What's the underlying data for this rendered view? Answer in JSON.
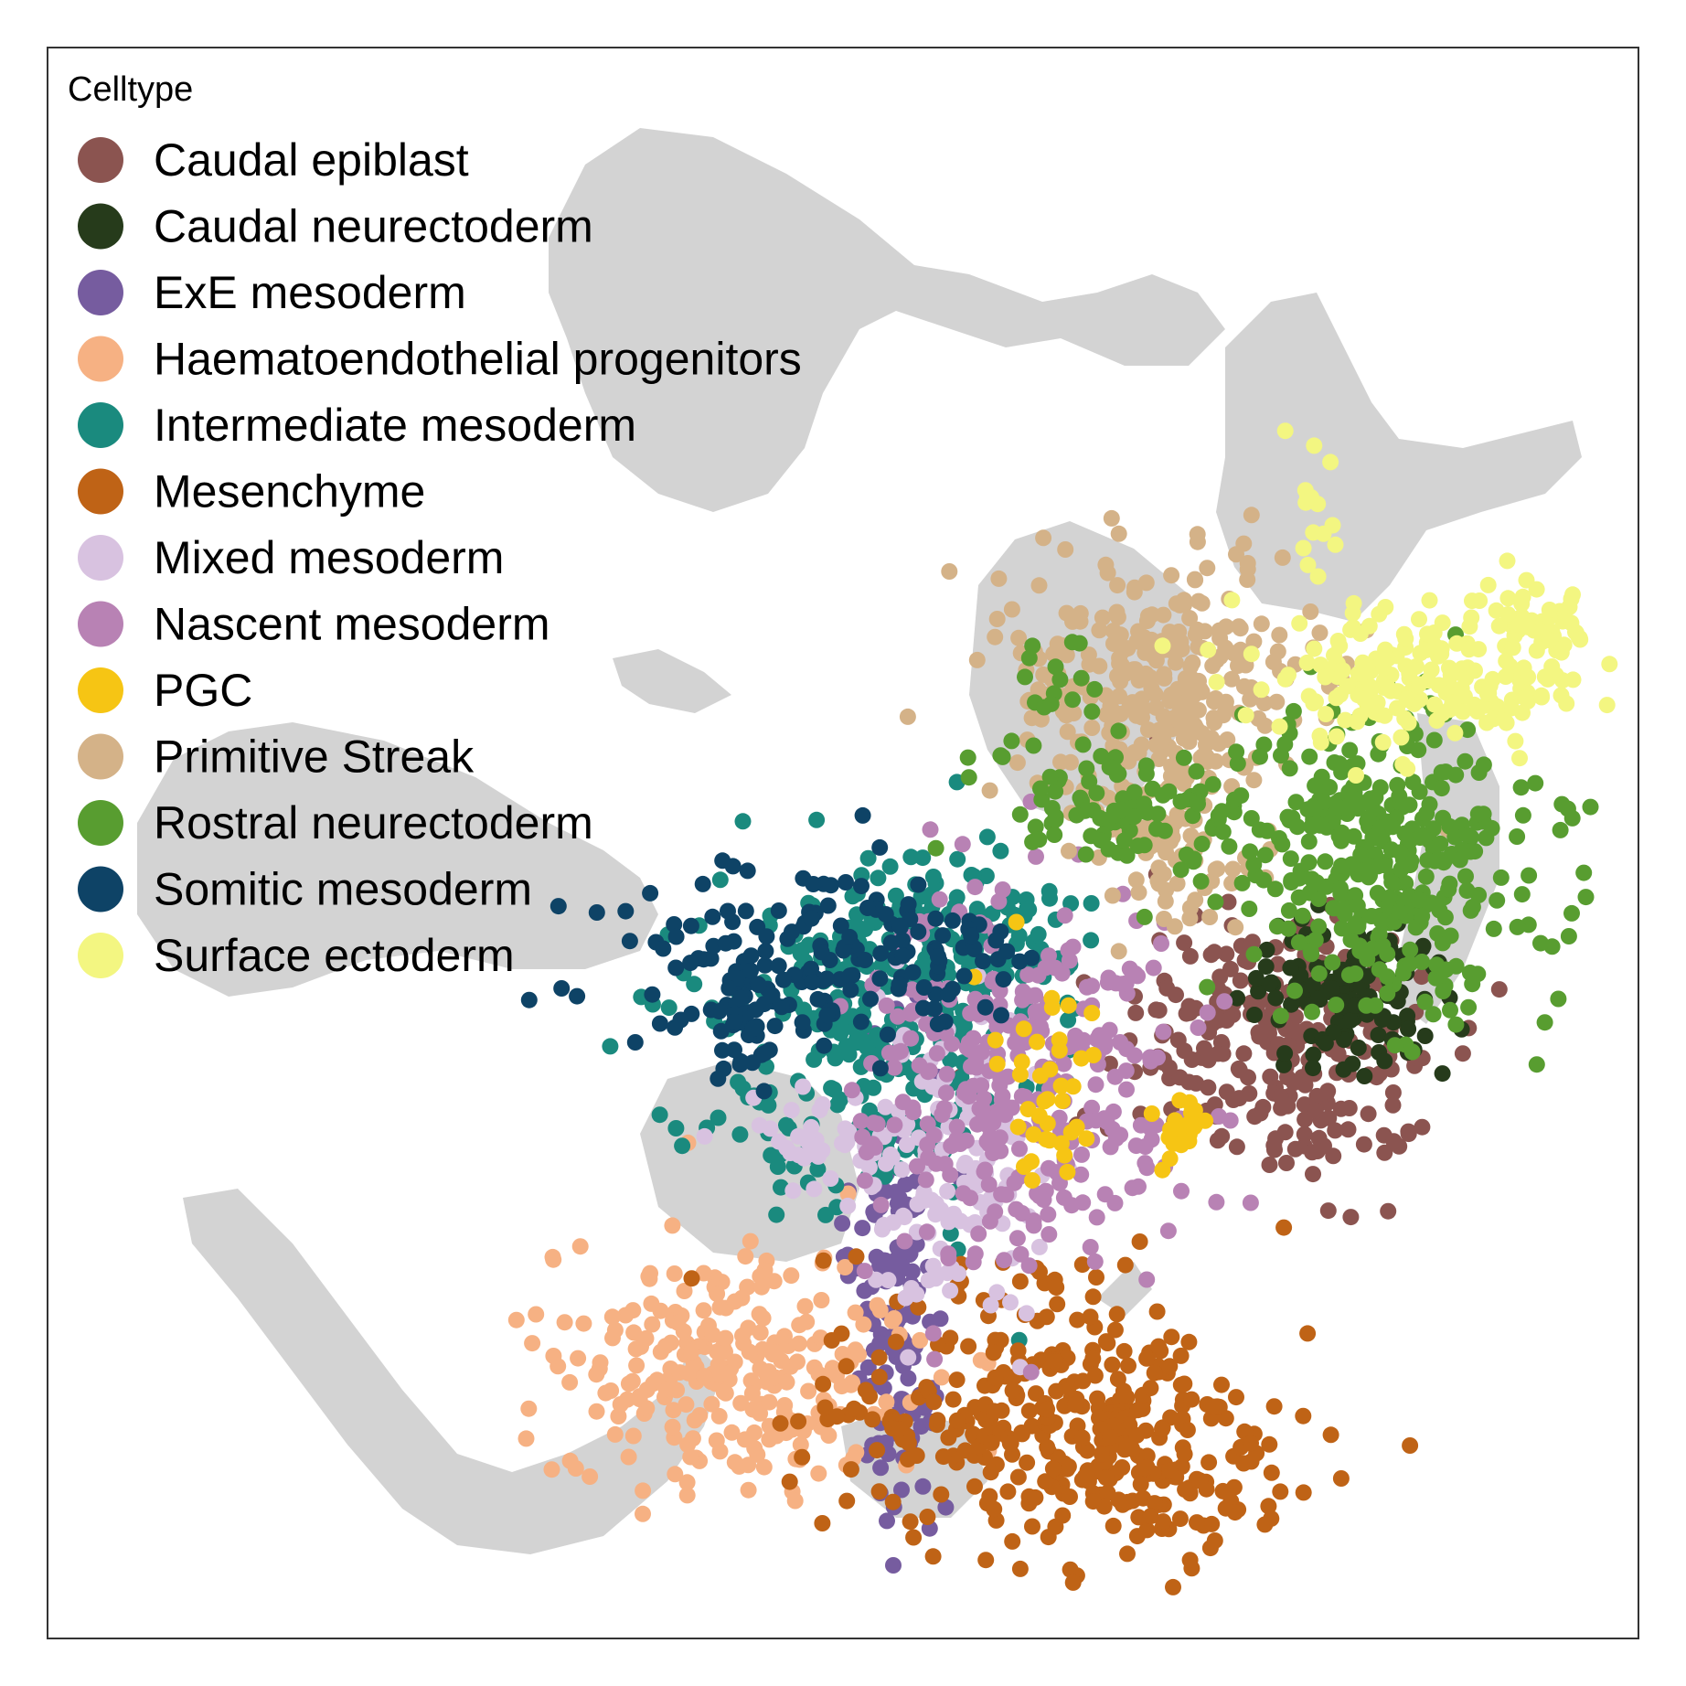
{
  "chart_data": {
    "type": "scatter",
    "title": "",
    "xlabel": "",
    "ylabel": "",
    "axes_visible": false,
    "grid": false,
    "panel_border": true,
    "legend": {
      "title": "Celltype",
      "placement": "top-left"
    },
    "background_color": "#d3d3d3",
    "series": [
      {
        "name": "Caudal epiblast",
        "color": "#8b5450"
      },
      {
        "name": "Caudal neurectoderm",
        "color": "#263b1b"
      },
      {
        "name": "ExE mesoderm",
        "color": "#765c9f"
      },
      {
        "name": "Haematoendothelial progenitors",
        "color": "#f6b183"
      },
      {
        "name": "Intermediate mesoderm",
        "color": "#1a8a7e"
      },
      {
        "name": "Mesenchyme",
        "color": "#bf6316"
      },
      {
        "name": "Mixed mesoderm",
        "color": "#d8c2e0"
      },
      {
        "name": "Nascent mesoderm",
        "color": "#b882b4"
      },
      {
        "name": "PGC",
        "color": "#f6c514"
      },
      {
        "name": "Primitive Streak",
        "color": "#d4b288"
      },
      {
        "name": "Rostral neurectoderm",
        "color": "#589d30"
      },
      {
        "name": "Somitic mesoderm",
        "color": "#0e4366"
      },
      {
        "name": "Surface ectoderm",
        "color": "#f3f681"
      }
    ]
  }
}
